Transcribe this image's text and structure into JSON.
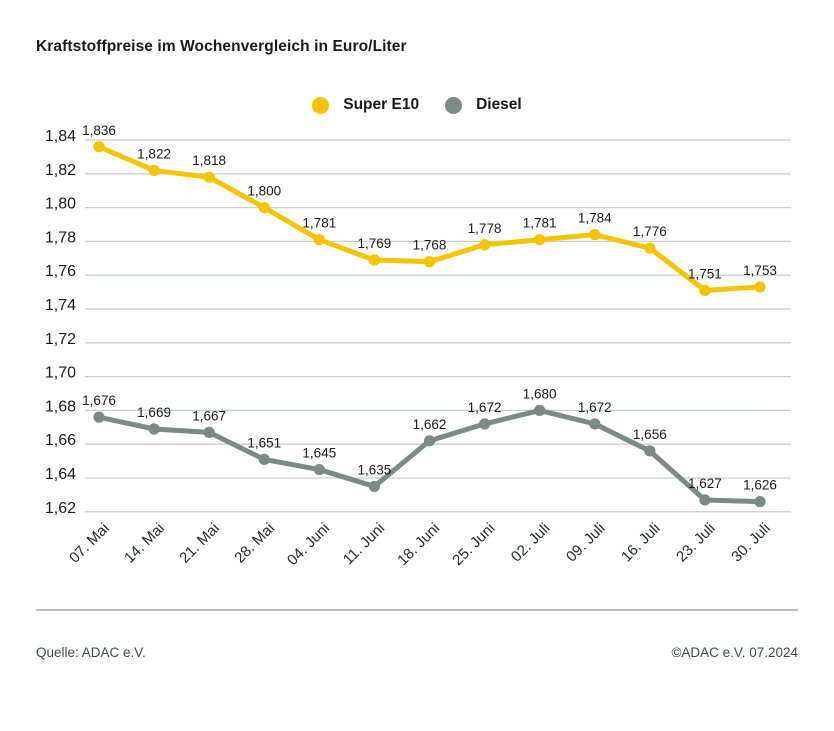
{
  "title": "Kraftstoffpreise im Wochenvergleich in Euro/Liter",
  "legend": {
    "items": [
      {
        "label": "Super E10",
        "color": "#F5C400"
      },
      {
        "label": "Diesel",
        "color": "#7B8A83"
      }
    ]
  },
  "footer": {
    "source": "Quelle: ADAC e.V.",
    "copyright": "©ADAC e.V. 07.2024"
  },
  "colors": {
    "super_e10": "#F5C400",
    "diesel": "#7B8A83",
    "gridline": "#C9CED0",
    "text_dark": "#1a1a1a",
    "footer_text": "#3c4a4e"
  },
  "chart_data": {
    "type": "line",
    "title": "Kraftstoffpreise im Wochenvergleich in Euro/Liter",
    "categories": [
      "07. Mai",
      "14. Mai",
      "21. Mai",
      "28. Mai",
      "04. Juni",
      "11. Juni",
      "18. Juni",
      "25. Juni",
      "02. Juli",
      "09. Juli",
      "16. Juli",
      "23. Juli",
      "30. Juli"
    ],
    "series": [
      {
        "name": "Super E10",
        "color": "#F5C400",
        "values": [
          1.836,
          1.822,
          1.818,
          1.8,
          1.781,
          1.769,
          1.768,
          1.778,
          1.781,
          1.784,
          1.776,
          1.751,
          1.753
        ]
      },
      {
        "name": "Diesel",
        "color": "#7B8A83",
        "values": [
          1.676,
          1.669,
          1.667,
          1.651,
          1.645,
          1.635,
          1.662,
          1.672,
          1.68,
          1.672,
          1.656,
          1.627,
          1.626
        ]
      }
    ],
    "ylim": [
      1.62,
      1.84
    ],
    "ytick_step": 0.02,
    "ylabel": "",
    "xlabel": "",
    "grid": true,
    "legend_position": "top-center",
    "decimal_separator": ",",
    "value_decimals": 3,
    "tick_decimals": 2,
    "data_labels": true
  }
}
